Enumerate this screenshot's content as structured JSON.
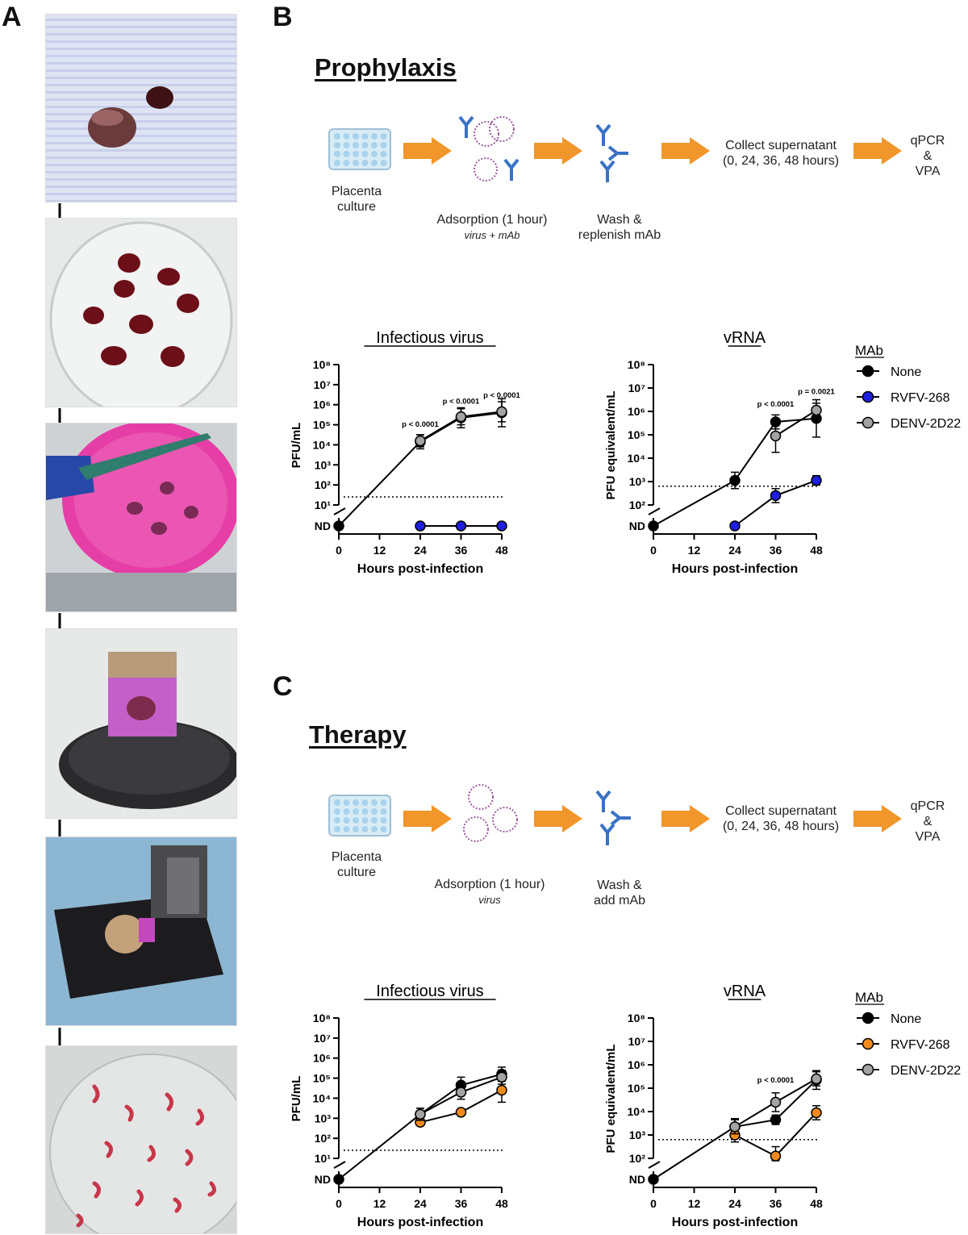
{
  "panels": {
    "a": "A",
    "b": "B",
    "c": "C"
  },
  "colors": {
    "none": "#000000",
    "rvfv_blue": "#1f1fe0",
    "rvfv_orange": "#f08a1c",
    "denv": "#a3a3a3",
    "arrow": "#f0962a",
    "plate": "#d8ecf6",
    "antibody": "#3a72c4",
    "virus": "#9b5a9e"
  },
  "photos": [
    {
      "icon": "placenta-tissue-on-tissue-photo"
    },
    {
      "icon": "placenta-pieces-in-dish-photo"
    },
    {
      "icon": "agarose-embedding-photo"
    },
    {
      "icon": "mounted-block-photo"
    },
    {
      "icon": "vibratome-slicing-photo"
    },
    {
      "icon": "tissue-slices-in-dish-photo"
    }
  ],
  "prophylaxis": {
    "title": "Prophylaxis",
    "workflow": {
      "step1": [
        "Placenta",
        "culture"
      ],
      "step2": "Adsorption (1 hour)",
      "step2_sub": "virus + mAb",
      "step3": [
        "Wash &",
        "replenish mAb"
      ],
      "step4": [
        "Collect supernatant",
        "(0, 24, 36, 48 hours)"
      ],
      "step5": [
        "qPCR",
        "&",
        "VPA"
      ]
    }
  },
  "therapy": {
    "title": "Therapy",
    "workflow": {
      "step1": [
        "Placenta",
        "culture"
      ],
      "step2": "Adsorption (1 hour)",
      "step2_sub": "virus",
      "step3": [
        "Wash &",
        "add mAb"
      ],
      "step4": [
        "Collect supernatant",
        "(0, 24, 36, 48 hours)"
      ],
      "step5": [
        "qPCR",
        "&",
        "VPA"
      ]
    }
  },
  "legends": [
    {
      "title": "MAb",
      "items": [
        {
          "label": "None",
          "color": "#000000"
        },
        {
          "label": "RVFV-268",
          "color": "#1f1fe0"
        },
        {
          "label": "DENV-2D22",
          "color": "#a3a3a3"
        }
      ]
    },
    {
      "title": "MAb",
      "items": [
        {
          "label": "None",
          "color": "#000000"
        },
        {
          "label": "RVFV-268",
          "color": "#f08a1c"
        },
        {
          "label": "DENV-2D22",
          "color": "#a3a3a3"
        }
      ]
    }
  ],
  "chart_data": [
    {
      "type": "line",
      "title": "Infectious virus",
      "xlabel": "Hours post-infection",
      "ylabel": "PFU/mL",
      "x_ticks": [
        "0",
        "12",
        "24",
        "36",
        "48"
      ],
      "y_ticks": [
        "10¹",
        "10²",
        "10³",
        "10⁴",
        "10⁵",
        "10⁶",
        "10⁷",
        "10⁸"
      ],
      "nd_label": "ND",
      "ylim_log10": [
        1,
        8
      ],
      "xlim": [
        0,
        48
      ],
      "limit_of_detection_log10": 1.4,
      "series": [
        {
          "name": "None",
          "color": "#000000",
          "x": [
            24,
            36,
            48
          ],
          "log10_y": [
            4.15,
            5.35,
            5.6
          ],
          "err": [
            0.35,
            0.5,
            0.7
          ],
          "nd": [
            0
          ]
        },
        {
          "name": "RVFV-268",
          "color": "#1f1fe0",
          "x": [],
          "log10_y": [],
          "err": [],
          "nd": [
            24,
            36,
            48
          ]
        },
        {
          "name": "DENV-2D22",
          "color": "#a3a3a3",
          "x": [
            24,
            36,
            48
          ],
          "log10_y": [
            4.2,
            5.4,
            5.65
          ],
          "err": [
            0.3,
            0.4,
            0.5
          ],
          "nd": []
        }
      ],
      "annotations": [
        {
          "x": 24,
          "log10_y": 4.9,
          "text": "p < 0.0001"
        },
        {
          "x": 36,
          "log10_y": 6.05,
          "text": "p < 0.0001"
        },
        {
          "x": 48,
          "log10_y": 6.35,
          "text": "p < 0.0001"
        }
      ]
    },
    {
      "type": "line",
      "title": "vRNA",
      "xlabel": "Hours post-infection",
      "ylabel": "PFU equivalent/mL",
      "x_ticks": [
        "0",
        "12",
        "24",
        "36",
        "48"
      ],
      "y_ticks": [
        "10²",
        "10³",
        "10⁴",
        "10⁵",
        "10⁶",
        "10⁷",
        "10⁸"
      ],
      "nd_label": "ND",
      "ylim_log10": [
        2,
        8
      ],
      "xlim": [
        0,
        48
      ],
      "limit_of_detection_log10": 2.8,
      "series": [
        {
          "name": "None",
          "color": "#000000",
          "x": [
            24,
            36,
            48
          ],
          "log10_y": [
            3.05,
            5.55,
            5.7
          ],
          "err": [
            0.35,
            0.3,
            0.8
          ],
          "nd": [
            0
          ]
        },
        {
          "name": "RVFV-268",
          "color": "#1f1fe0",
          "x": [
            36,
            48
          ],
          "log10_y": [
            2.4,
            3.05
          ],
          "err": [
            0.3,
            0.2
          ],
          "nd": [
            24
          ]
        },
        {
          "name": "DENV-2D22",
          "color": "#a3a3a3",
          "x": [
            36,
            48
          ],
          "log10_y": [
            4.95,
            6.05
          ],
          "err": [
            0.7,
            0.3
          ],
          "nd": []
        }
      ],
      "annotations": [
        {
          "x": 36,
          "log10_y": 6.2,
          "text": "p < 0.0001"
        },
        {
          "x": 48,
          "log10_y": 6.75,
          "text": "p = 0.0021"
        }
      ]
    },
    {
      "type": "line",
      "title": "Infectious virus",
      "xlabel": "Hours post-infection",
      "ylabel": "PFU/mL",
      "x_ticks": [
        "0",
        "12",
        "24",
        "36",
        "48"
      ],
      "y_ticks": [
        "10¹",
        "10²",
        "10³",
        "10⁴",
        "10⁵",
        "10⁶",
        "10⁷",
        "10⁸"
      ],
      "nd_label": "ND",
      "ylim_log10": [
        1,
        8
      ],
      "xlim": [
        0,
        48
      ],
      "limit_of_detection_log10": 1.4,
      "series": [
        {
          "name": "None",
          "color": "#000000",
          "x": [
            24,
            36,
            48
          ],
          "log10_y": [
            3.2,
            4.65,
            5.2
          ],
          "err": [
            0.3,
            0.4,
            0.35
          ],
          "nd": [
            0
          ]
        },
        {
          "name": "RVFV-268",
          "color": "#f08a1c",
          "x": [
            24,
            36,
            48
          ],
          "log10_y": [
            2.8,
            3.3,
            4.4
          ],
          "err": [
            0.1,
            0.1,
            0.6
          ],
          "nd": []
        },
        {
          "name": "DENV-2D22",
          "color": "#a3a3a3",
          "x": [
            24,
            36,
            48
          ],
          "log10_y": [
            3.2,
            4.3,
            5.05
          ],
          "err": [
            0.3,
            0.35,
            0.35
          ],
          "nd": []
        }
      ],
      "annotations": []
    },
    {
      "type": "line",
      "title": "vRNA",
      "xlabel": "Hours post-infection",
      "ylabel": "PFU equivalent/mL",
      "x_ticks": [
        "0",
        "12",
        "24",
        "36",
        "48"
      ],
      "y_ticks": [
        "10²",
        "10³",
        "10⁴",
        "10⁵",
        "10⁶",
        "10⁷",
        "10⁸"
      ],
      "nd_label": "ND",
      "ylim_log10": [
        2,
        8
      ],
      "xlim": [
        0,
        48
      ],
      "limit_of_detection_log10": 2.8,
      "series": [
        {
          "name": "None",
          "color": "#000000",
          "x": [
            24,
            36,
            48
          ],
          "log10_y": [
            3.35,
            3.65,
            5.35
          ],
          "err": [
            0.35,
            0.2,
            0.4
          ],
          "nd": [
            0
          ]
        },
        {
          "name": "RVFV-268",
          "color": "#f08a1c",
          "x": [
            24,
            36,
            48
          ],
          "log10_y": [
            3.0,
            2.1,
            3.95
          ],
          "err": [
            0.3,
            0.4,
            0.3
          ],
          "nd": []
        },
        {
          "name": "DENV-2D22",
          "color": "#a3a3a3",
          "x": [
            24,
            36,
            48
          ],
          "log10_y": [
            3.35,
            4.4,
            5.4
          ],
          "err": [
            0.3,
            0.4,
            0.3
          ],
          "nd": []
        }
      ],
      "annotations": [
        {
          "x": 36,
          "log10_y": 5.25,
          "text": "p < 0.0001"
        }
      ]
    }
  ]
}
